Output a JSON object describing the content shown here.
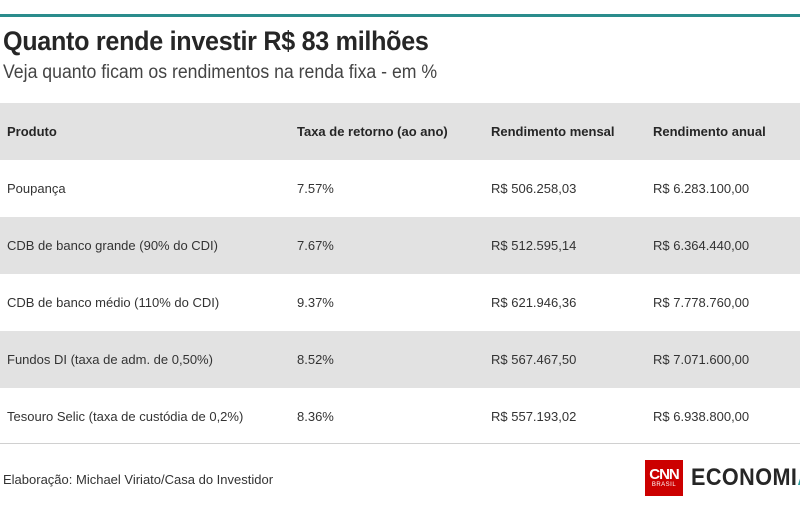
{
  "title": "Quanto rende investir R$ 83 milhões",
  "subtitle": "Veja quanto ficam os rendimentos na renda fixa - em %",
  "table": {
    "headers": [
      "Produto",
      "Taxa de retorno (ao ano)",
      "Rendimento mensal",
      "Rendimento anual"
    ],
    "rows": [
      [
        "Poupança",
        "7.57%",
        "R$ 506.258,03",
        "R$ 6.283.100,00"
      ],
      [
        "CDB de banco grande (90% do CDI)",
        "7.67%",
        "R$ 512.595,14",
        "R$ 6.364.440,00"
      ],
      [
        "CDB de banco médio (110% do CDI)",
        "9.37%",
        "R$ 621.946,36",
        "R$ 7.778.760,00"
      ],
      [
        "Fundos DI (taxa de adm. de 0,50%)",
        "8.52%",
        "R$ 567.467,50",
        "R$ 7.071.600,00"
      ],
      [
        "Tesouro Selic (taxa de custódia de 0,2%)",
        "8.36%",
        "R$ 557.193,02",
        "R$ 6.938.800,00"
      ]
    ]
  },
  "credit": "Elaboração: Michael Viriato/Casa do Investidor",
  "logo": {
    "box_text": "CNN",
    "box_subtext": "BRASIL",
    "word_main": "ECONOMI",
    "word_accent": "A",
    "box_color": "#cc0000",
    "accent_color": "#2a9d9d"
  },
  "colors": {
    "rule": "#2a8c8c",
    "row_shade": "#e2e2e2"
  }
}
